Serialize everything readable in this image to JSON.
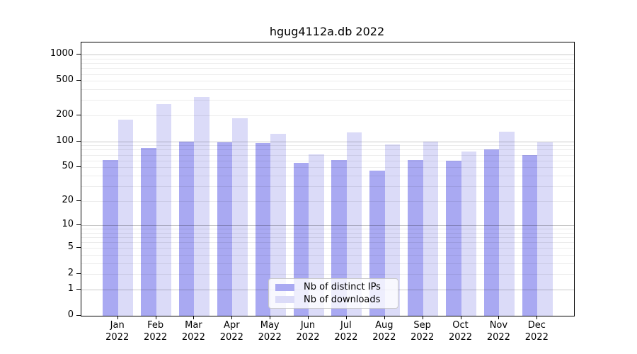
{
  "chart_data": {
    "type": "bar",
    "title": "hgug4112a.db 2022",
    "categories": [
      "Jan",
      "Feb",
      "Mar",
      "Apr",
      "May",
      "Jun",
      "Jul",
      "Aug",
      "Sep",
      "Oct",
      "Nov",
      "Dec"
    ],
    "x_tick_year": "2022",
    "series": [
      {
        "name": "Nb of distinct IPs",
        "color": "#a9a9f2",
        "values": [
          61,
          84,
          100,
          97,
          96,
          56,
          61,
          46,
          61,
          60,
          80,
          70
        ]
      },
      {
        "name": "Nb of downloads",
        "color": "#dbdbf8",
        "values": [
          180,
          272,
          325,
          185,
          122,
          71,
          128,
          93,
          100,
          76,
          129,
          97
        ]
      }
    ],
    "y_ticks": [
      0,
      1,
      2,
      5,
      10,
      20,
      50,
      100,
      200,
      500,
      1000
    ],
    "y_scale": "log10(value+1)",
    "ylim": [
      0,
      1400
    ],
    "xlabel": "",
    "ylabel": "",
    "grid": "on",
    "legend_position": "inside-bottom-center"
  },
  "colors": {
    "background": "#ffffff",
    "axis": "#000000",
    "major_grid": "rgba(0,0,0,0.21)",
    "minor_grid": "rgba(0,0,0,0.075)",
    "legend_border": "#c9c9c9"
  }
}
